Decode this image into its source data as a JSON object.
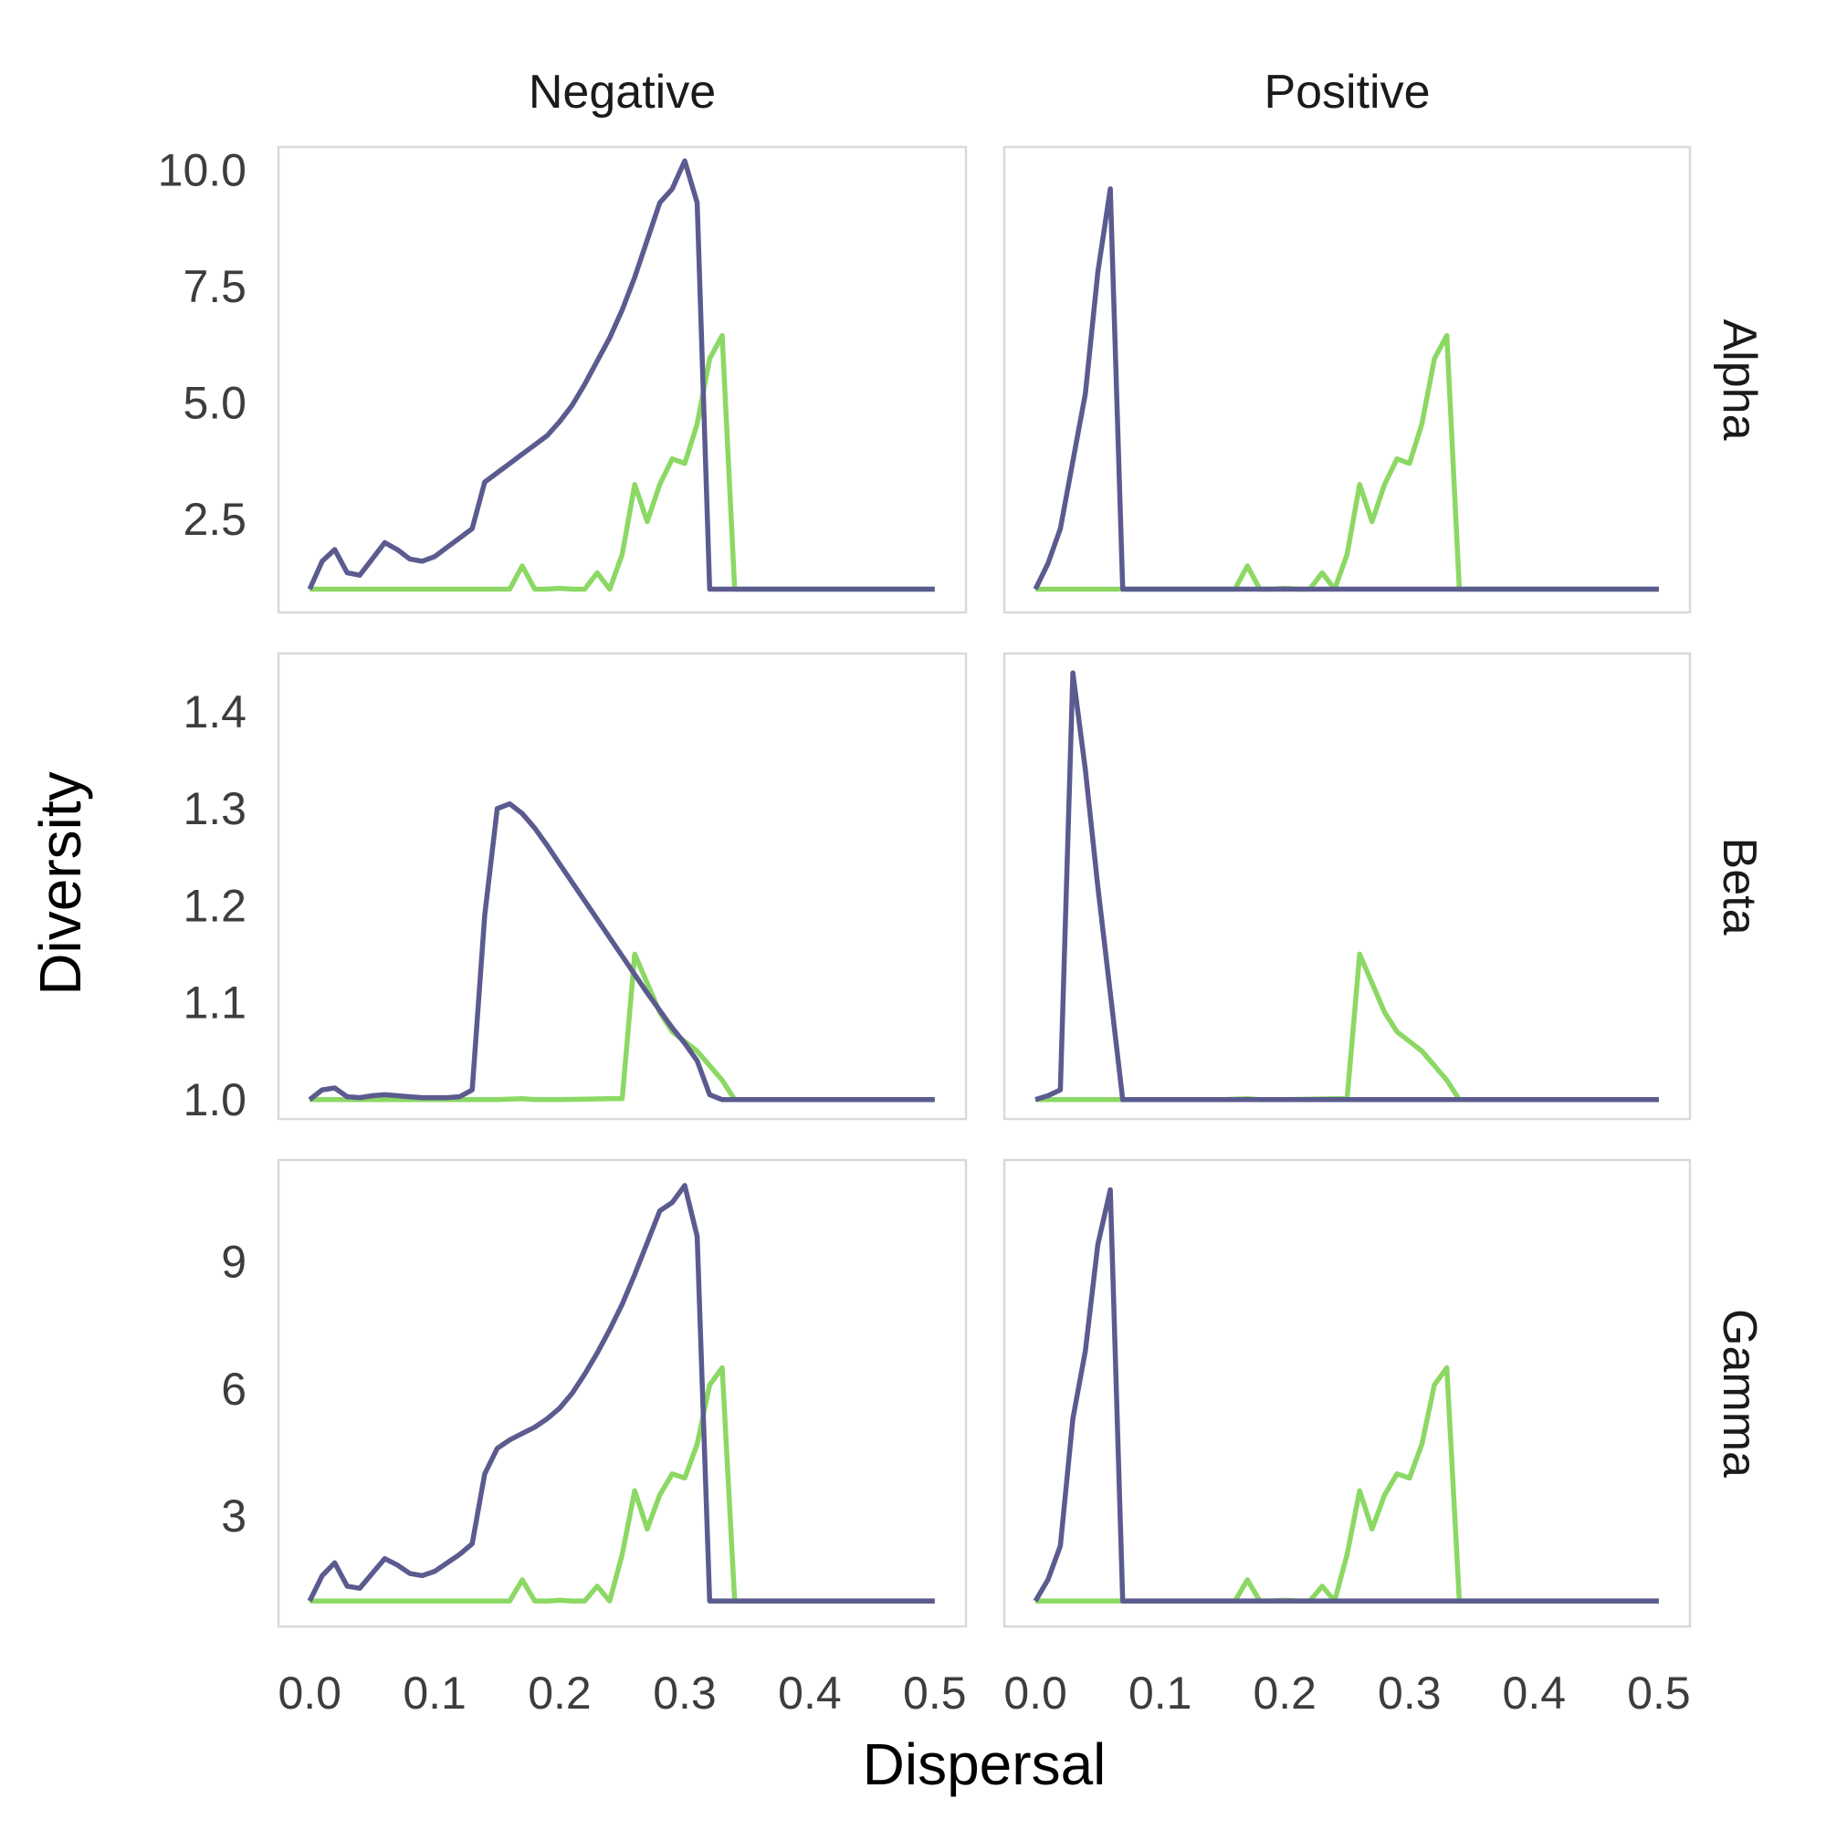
{
  "chart_data": {
    "type": "line",
    "xlabel": "Dispersal",
    "ylabel": "Diversity",
    "columns": [
      "Negative",
      "Positive"
    ],
    "rows": [
      "Alpha",
      "Beta",
      "Gamma"
    ],
    "xlim": [
      -0.025,
      0.525
    ],
    "x_ticks": [
      0.0,
      0.1,
      0.2,
      0.3,
      0.4,
      0.5
    ],
    "x_tick_labels": [
      "0.0",
      "0.1",
      "0.2",
      "0.3",
      "0.4",
      "0.5"
    ],
    "grid": false,
    "legend": "none",
    "series_colors": [
      "#8cd864",
      "#5b5b8f"
    ],
    "y_axes": [
      {
        "row": "Alpha",
        "ylim": [
          0.5,
          10.5
        ],
        "ticks": [
          2.5,
          5.0,
          7.5,
          10.0
        ],
        "tick_labels": [
          "2.5",
          "5.0",
          "7.5",
          "10.0"
        ]
      },
      {
        "row": "Beta",
        "ylim": [
          0.98,
          1.46
        ],
        "ticks": [
          1.0,
          1.1,
          1.2,
          1.3,
          1.4
        ],
        "tick_labels": [
          "1.0",
          "1.1",
          "1.2",
          "1.3",
          "1.4"
        ]
      },
      {
        "row": "Gamma",
        "ylim": [
          0.4,
          11.4
        ],
        "ticks": [
          3,
          6,
          9
        ],
        "tick_labels": [
          "3",
          "6",
          "9"
        ]
      }
    ],
    "panels": [
      {
        "row": "Alpha",
        "column": "Negative",
        "series": [
          {
            "x": [
              0,
              0.01,
              0.02,
              0.03,
              0.04,
              0.05,
              0.06,
              0.07,
              0.08,
              0.09,
              0.1,
              0.11,
              0.12,
              0.13,
              0.14,
              0.15,
              0.16,
              0.17,
              0.18,
              0.19,
              0.2,
              0.21,
              0.22,
              0.23,
              0.24,
              0.25,
              0.26,
              0.27,
              0.28,
              0.29,
              0.3,
              0.31,
              0.32,
              0.33,
              0.34,
              0.35,
              0.5
            ],
            "y": [
              1,
              1,
              1,
              1,
              1,
              1,
              1,
              1,
              1,
              1,
              1,
              1,
              1,
              1,
              1,
              1,
              1,
              1.5,
              1,
              1,
              1.02,
              1,
              1,
              1.35,
              1,
              1.75,
              3.25,
              2.45,
              3.25,
              3.8,
              3.7,
              4.55,
              5.95,
              6.45,
              1,
              1,
              1
            ]
          },
          {
            "x": [
              0,
              0.01,
              0.02,
              0.03,
              0.04,
              0.05,
              0.06,
              0.07,
              0.08,
              0.09,
              0.1,
              0.11,
              0.12,
              0.13,
              0.14,
              0.15,
              0.16,
              0.17,
              0.18,
              0.19,
              0.2,
              0.21,
              0.22,
              0.23,
              0.24,
              0.25,
              0.26,
              0.27,
              0.28,
              0.29,
              0.3,
              0.31,
              0.32,
              0.33,
              0.34,
              0.35,
              0.5
            ],
            "y": [
              1,
              1.6,
              1.85,
              1.35,
              1.3,
              1.65,
              2,
              1.85,
              1.65,
              1.6,
              1.7,
              1.9,
              2.1,
              2.3,
              3.3,
              3.5,
              3.7,
              3.9,
              4.1,
              4.3,
              4.6,
              4.95,
              5.4,
              5.9,
              6.4,
              7,
              7.7,
              8.5,
              9.3,
              9.6,
              10.2,
              9.3,
              1,
              1,
              1,
              1,
              1
            ]
          }
        ]
      },
      {
        "row": "Alpha",
        "column": "Positive",
        "series": [
          {
            "x": [
              0,
              0.01,
              0.02,
              0.03,
              0.04,
              0.05,
              0.06,
              0.07,
              0.08,
              0.09,
              0.1,
              0.11,
              0.12,
              0.13,
              0.14,
              0.15,
              0.16,
              0.17,
              0.18,
              0.19,
              0.2,
              0.21,
              0.22,
              0.23,
              0.24,
              0.25,
              0.26,
              0.27,
              0.28,
              0.29,
              0.3,
              0.31,
              0.32,
              0.33,
              0.34,
              0.35,
              0.5
            ],
            "y": [
              1,
              1,
              1,
              1,
              1,
              1,
              1,
              1,
              1,
              1,
              1,
              1,
              1,
              1,
              1,
              1,
              1,
              1.5,
              1,
              1,
              1.02,
              1,
              1,
              1.35,
              1,
              1.75,
              3.25,
              2.45,
              3.25,
              3.8,
              3.7,
              4.55,
              5.95,
              6.45,
              1,
              1,
              1
            ]
          },
          {
            "x": [
              0,
              0.01,
              0.02,
              0.03,
              0.04,
              0.05,
              0.06,
              0.07,
              0.1,
              0.2,
              0.3,
              0.4,
              0.5
            ],
            "y": [
              1,
              1.55,
              2.3,
              3.75,
              5.2,
              7.8,
              9.6,
              1,
              1,
              1,
              1,
              1,
              1
            ]
          }
        ]
      },
      {
        "row": "Beta",
        "column": "Negative",
        "series": [
          {
            "x": [
              0,
              0.05,
              0.1,
              0.15,
              0.17,
              0.18,
              0.2,
              0.24,
              0.25,
              0.26,
              0.27,
              0.28,
              0.29,
              0.3,
              0.31,
              0.32,
              0.33,
              0.34,
              0.35,
              0.5
            ],
            "y": [
              1,
              1,
              1,
              1,
              1.001,
              1,
              1,
              1.001,
              1.001,
              1.15,
              1.12,
              1.09,
              1.07,
              1.06,
              1.05,
              1.035,
              1.02,
              1,
              1,
              1
            ]
          },
          {
            "x": [
              0,
              0.01,
              0.02,
              0.03,
              0.04,
              0.05,
              0.06,
              0.07,
              0.08,
              0.09,
              0.1,
              0.11,
              0.12,
              0.13,
              0.14,
              0.15,
              0.16,
              0.17,
              0.18,
              0.19,
              0.2,
              0.21,
              0.22,
              0.23,
              0.24,
              0.25,
              0.26,
              0.27,
              0.28,
              0.29,
              0.3,
              0.31,
              0.32,
              0.33,
              0.34,
              0.35,
              0.5
            ],
            "y": [
              1,
              1.01,
              1.012,
              1.003,
              1.002,
              1.004,
              1.005,
              1.004,
              1.003,
              1.002,
              1.002,
              1.002,
              1.003,
              1.01,
              1.19,
              1.3,
              1.305,
              1.295,
              1.28,
              1.262,
              1.243,
              1.224,
              1.205,
              1.186,
              1.167,
              1.148,
              1.129,
              1.11,
              1.092,
              1.074,
              1.058,
              1.04,
              1.005,
              1,
              1,
              1,
              1
            ]
          }
        ]
      },
      {
        "row": "Beta",
        "column": "Positive",
        "series": [
          {
            "x": [
              0,
              0.05,
              0.1,
              0.15,
              0.17,
              0.18,
              0.2,
              0.24,
              0.25,
              0.26,
              0.27,
              0.28,
              0.29,
              0.3,
              0.31,
              0.32,
              0.33,
              0.34,
              0.35,
              0.5
            ],
            "y": [
              1,
              1,
              1,
              1,
              1.001,
              1,
              1,
              1.001,
              1.001,
              1.15,
              1.12,
              1.09,
              1.07,
              1.06,
              1.05,
              1.035,
              1.02,
              1,
              1,
              1
            ]
          },
          {
            "x": [
              0,
              0.01,
              0.02,
              0.03,
              0.04,
              0.05,
              0.06,
              0.07,
              0.1,
              0.2,
              0.3,
              0.4,
              0.5
            ],
            "y": [
              1,
              1.004,
              1.01,
              1.44,
              1.34,
              1.22,
              1.11,
              1,
              1,
              1,
              1,
              1,
              1
            ]
          }
        ]
      },
      {
        "row": "Gamma",
        "column": "Negative",
        "series": [
          {
            "x": [
              0,
              0.01,
              0.02,
              0.03,
              0.04,
              0.05,
              0.06,
              0.07,
              0.08,
              0.09,
              0.1,
              0.11,
              0.12,
              0.13,
              0.14,
              0.15,
              0.16,
              0.17,
              0.18,
              0.19,
              0.2,
              0.21,
              0.22,
              0.23,
              0.24,
              0.25,
              0.26,
              0.27,
              0.28,
              0.29,
              0.3,
              0.31,
              0.32,
              0.33,
              0.34,
              0.35,
              0.5
            ],
            "y": [
              1,
              1,
              1,
              1,
              1,
              1,
              1,
              1,
              1,
              1,
              1,
              1,
              1,
              1,
              1,
              1,
              1,
              1.5,
              1,
              1,
              1.02,
              1,
              1,
              1.35,
              1,
              2.1,
              3.6,
              2.7,
              3.5,
              4.0,
              3.9,
              4.7,
              6.1,
              6.5,
              1,
              1,
              1
            ]
          },
          {
            "x": [
              0,
              0.01,
              0.02,
              0.03,
              0.04,
              0.05,
              0.06,
              0.07,
              0.08,
              0.09,
              0.1,
              0.11,
              0.12,
              0.13,
              0.14,
              0.15,
              0.16,
              0.17,
              0.18,
              0.19,
              0.2,
              0.21,
              0.22,
              0.23,
              0.24,
              0.25,
              0.26,
              0.27,
              0.28,
              0.29,
              0.3,
              0.31,
              0.32,
              0.33,
              0.34,
              0.35,
              0.5
            ],
            "y": [
              1,
              1.6,
              1.9,
              1.35,
              1.3,
              1.65,
              2,
              1.85,
              1.65,
              1.6,
              1.7,
              1.9,
              2.1,
              2.35,
              4.0,
              4.6,
              4.8,
              4.95,
              5.1,
              5.3,
              5.55,
              5.9,
              6.35,
              6.85,
              7.4,
              8.0,
              8.7,
              9.45,
              10.2,
              10.4,
              10.8,
              9.6,
              1,
              1,
              1,
              1,
              1
            ]
          }
        ]
      },
      {
        "row": "Gamma",
        "column": "Positive",
        "series": [
          {
            "x": [
              0,
              0.01,
              0.02,
              0.03,
              0.04,
              0.05,
              0.06,
              0.07,
              0.08,
              0.09,
              0.1,
              0.11,
              0.12,
              0.13,
              0.14,
              0.15,
              0.16,
              0.17,
              0.18,
              0.19,
              0.2,
              0.21,
              0.22,
              0.23,
              0.24,
              0.25,
              0.26,
              0.27,
              0.28,
              0.29,
              0.3,
              0.31,
              0.32,
              0.33,
              0.34,
              0.35,
              0.5
            ],
            "y": [
              1,
              1,
              1,
              1,
              1,
              1,
              1,
              1,
              1,
              1,
              1,
              1,
              1,
              1,
              1,
              1,
              1,
              1.5,
              1,
              1,
              1.02,
              1,
              1,
              1.35,
              1,
              2.1,
              3.6,
              2.7,
              3.5,
              4.0,
              3.9,
              4.7,
              6.1,
              6.5,
              1,
              1,
              1
            ]
          },
          {
            "x": [
              0,
              0.01,
              0.02,
              0.03,
              0.04,
              0.05,
              0.06,
              0.07,
              0.1,
              0.2,
              0.3,
              0.4,
              0.5
            ],
            "y": [
              1,
              1.5,
              2.3,
              5.3,
              6.9,
              9.4,
              10.7,
              1,
              1,
              1,
              1,
              1,
              1
            ]
          }
        ]
      }
    ]
  }
}
